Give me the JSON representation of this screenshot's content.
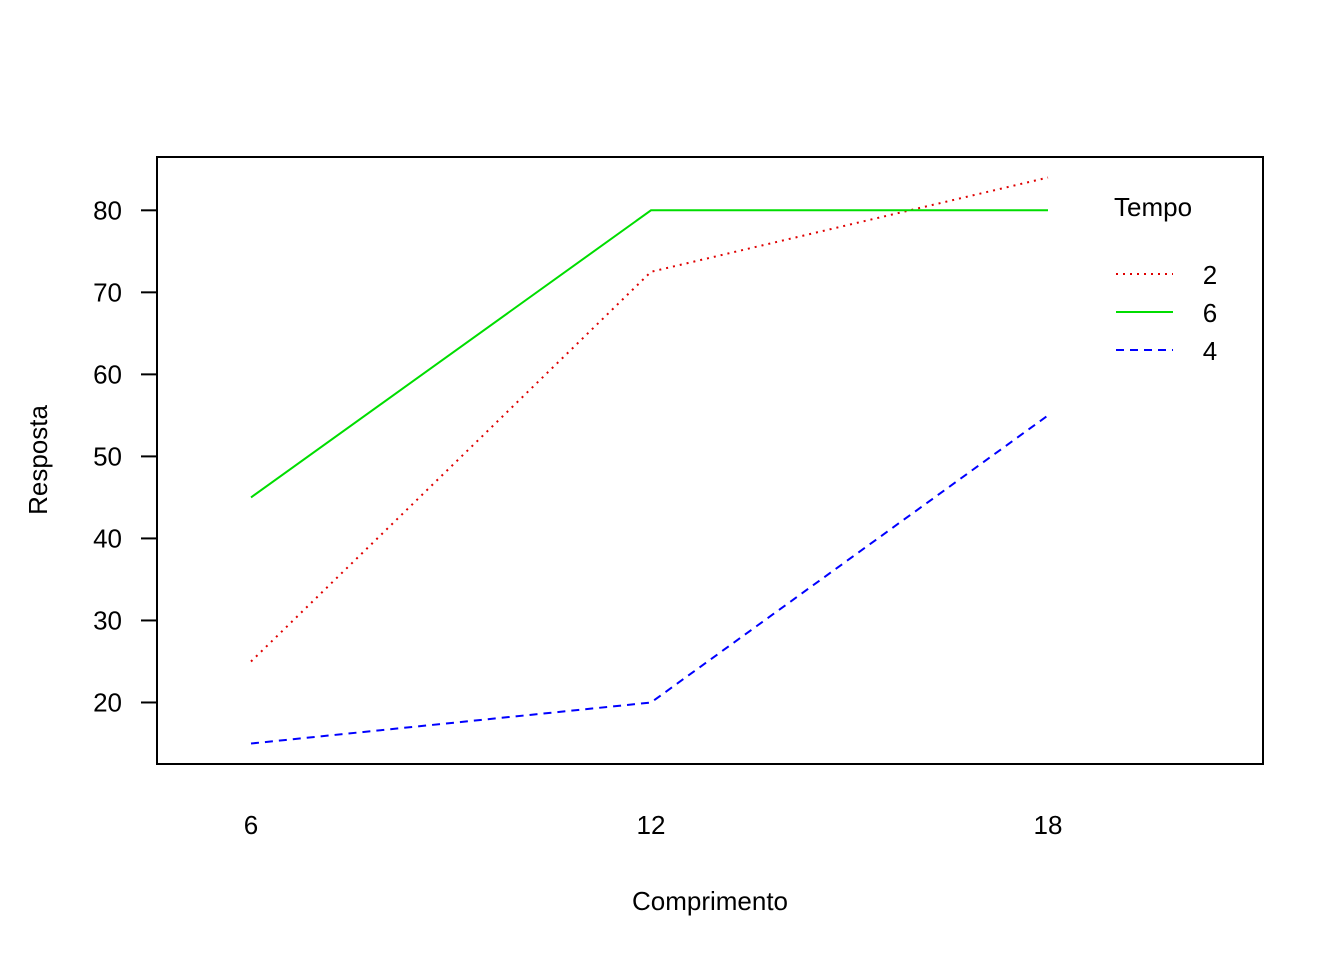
{
  "chart_data": {
    "type": "line",
    "xlabel": "Comprimento",
    "ylabel": "Resposta",
    "categories": [
      "6",
      "12",
      "18"
    ],
    "ylim": [
      12.5,
      86.5
    ],
    "yticks": [
      20,
      30,
      40,
      50,
      60,
      70,
      80
    ],
    "grid": false,
    "legend": {
      "title": "Tempo",
      "placement": "top-right",
      "entries": [
        "2",
        "6",
        "4"
      ]
    },
    "series": [
      {
        "name": "2",
        "values": [
          25,
          72.5,
          84
        ],
        "color": "#DF0000",
        "line_style": "dotted"
      },
      {
        "name": "6",
        "values": [
          45,
          80,
          80
        ],
        "color": "#00DD00",
        "line_style": "solid"
      },
      {
        "name": "4",
        "values": [
          15,
          20,
          55
        ],
        "color": "#0000FF",
        "line_style": "dashed"
      }
    ]
  }
}
